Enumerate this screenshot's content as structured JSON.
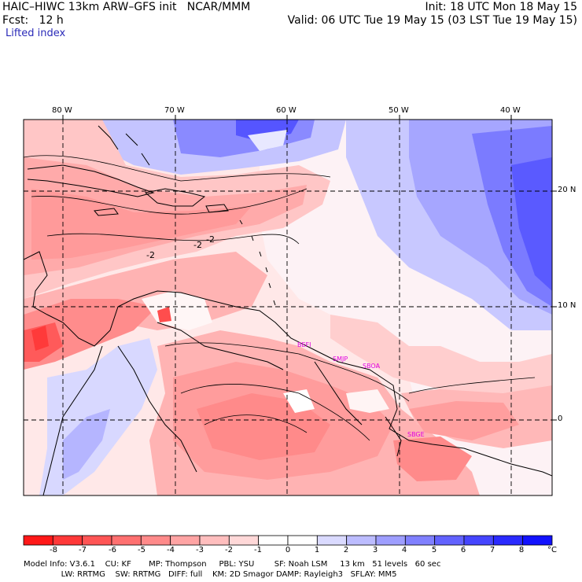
{
  "header": {
    "title_left": "HAIC–HIWC 13km ARW–GFS init   NCAR/MMM",
    "fcst": "Fcst:   12 h",
    "field": "Lifted index",
    "init": "Init: 18 UTC Mon 18 May 15",
    "valid": "Valid: 06 UTC Tue 19 May 15 (03 LST Tue 19 May 15)"
  },
  "map": {
    "lon_labels": [
      "80 W",
      "70 W",
      "60 W",
      "50 W",
      "40 W"
    ],
    "lat_labels": [
      "20 N",
      "10 N",
      "0"
    ],
    "contour_labels": [
      "-2",
      "-2",
      "-2"
    ],
    "stations": [
      "BEFI",
      "SMJP",
      "SBOA",
      "SBGE"
    ],
    "station_color": "#e000e0"
  },
  "colorbar": {
    "labels": [
      "-8",
      "-7",
      "-6",
      "-5",
      "-4",
      "-3",
      "-2",
      "-1",
      "0",
      "1",
      "2",
      "3",
      "4",
      "5",
      "6",
      "7",
      "8"
    ],
    "unit": "°C",
    "colors": [
      "#ff1818",
      "#ff3838",
      "#ff5555",
      "#ff7070",
      "#ff8a8a",
      "#ffa4a4",
      "#ffbebe",
      "#ffd8d8",
      "#ffffff",
      "#ffffff",
      "#dadaff",
      "#bcbcff",
      "#9e9eff",
      "#8080ff",
      "#6262ff",
      "#4545ff",
      "#2a2aff",
      "#1212ff"
    ]
  },
  "footer": {
    "line1": "Model Info: V3.6.1    CU: KF       MP: Thompson     PBL: YSU        SF: Noah LSM     13 km   51 levels   60 sec",
    "line2": "               LW: RRTMG    SW: RRTMG   DIFF: full    KM: 2D Smagor DAMP: Rayleigh3   SFLAY: MM5"
  }
}
